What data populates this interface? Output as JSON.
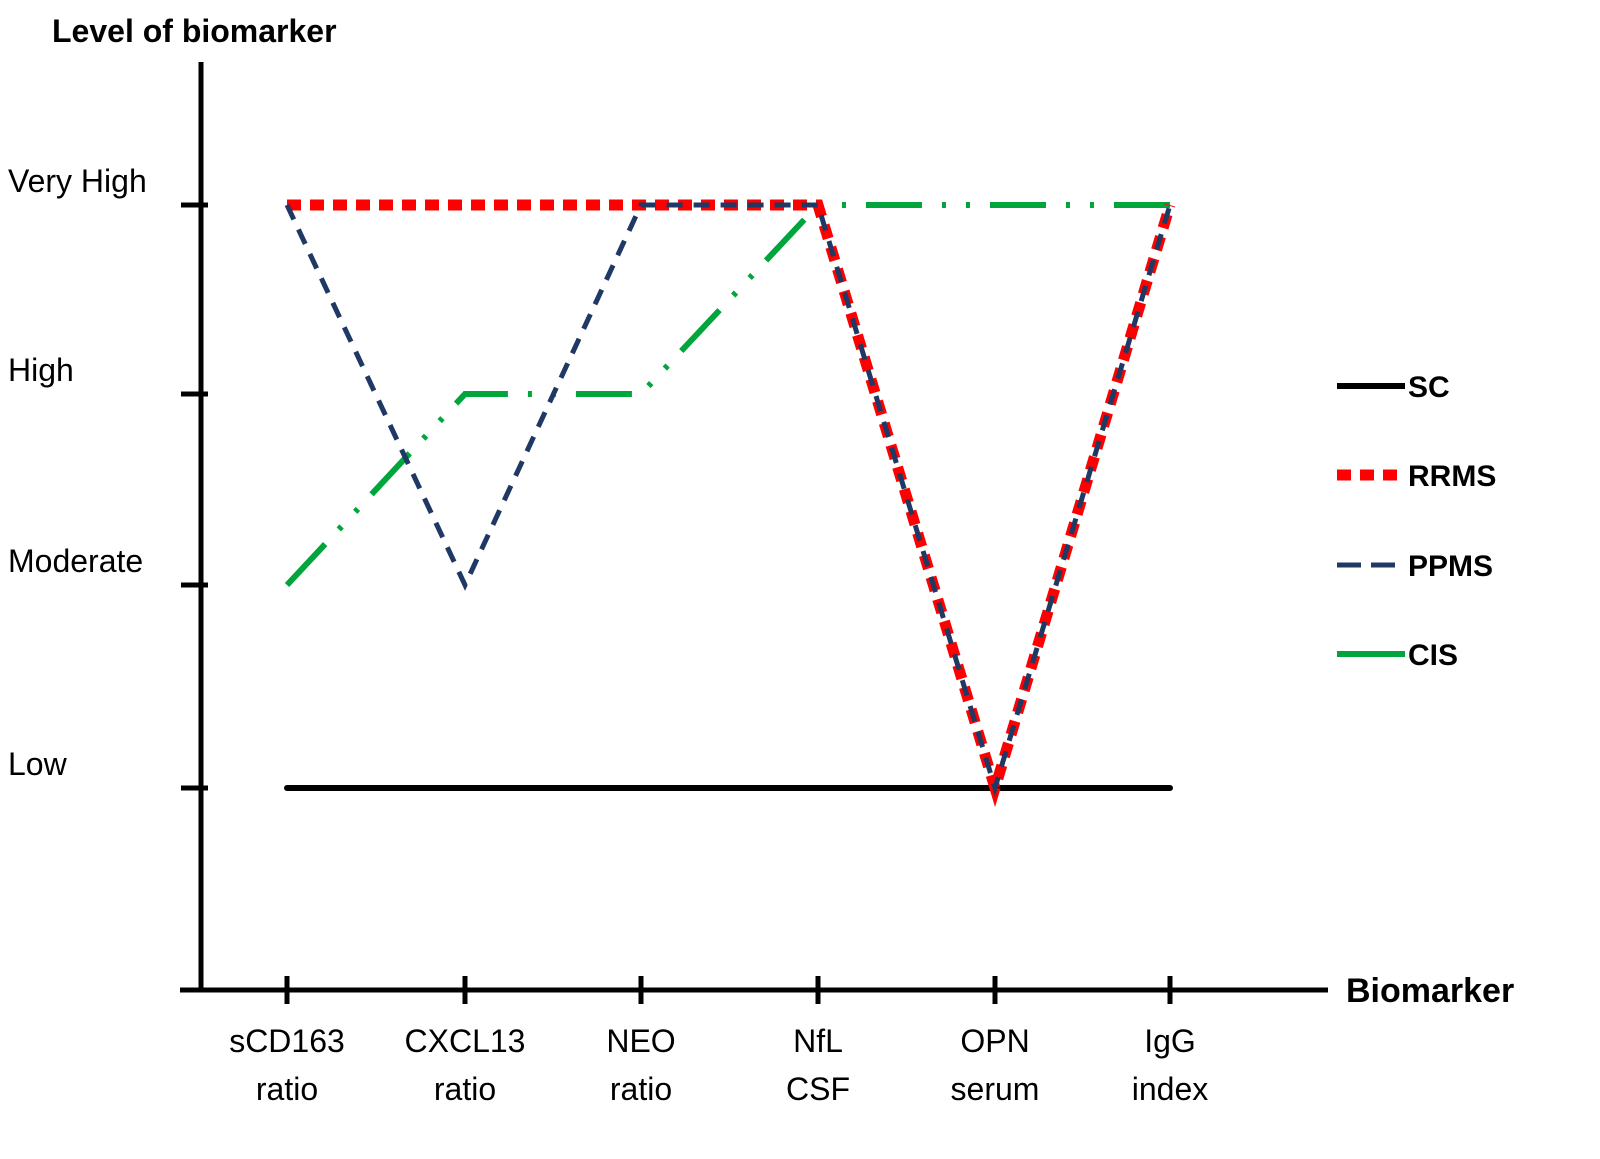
{
  "chart_data": {
    "type": "line",
    "title": "",
    "ylabel": "Level of  biomarker",
    "xlabel": "Biomarker",
    "y_levels": [
      "Low",
      "Moderate",
      "High",
      "Very High"
    ],
    "ylim": [
      0,
      4
    ],
    "categories": [
      [
        "sCD163",
        "ratio"
      ],
      [
        "CXCL13",
        "ratio"
      ],
      [
        "NEO",
        "ratio"
      ],
      [
        "NfL",
        "CSF"
      ],
      [
        "OPN",
        "serum"
      ],
      [
        "IgG",
        "index"
      ]
    ],
    "series": [
      {
        "name": "SC",
        "color": "#000000",
        "style": "solid",
        "values": [
          1,
          1,
          1,
          1,
          1,
          1
        ]
      },
      {
        "name": "RRMS",
        "color": "#ff0000",
        "style": "dotted-thick",
        "values": [
          4,
          4,
          4,
          4,
          1,
          4
        ]
      },
      {
        "name": "PPMS",
        "color": "#1f3864",
        "style": "dashed",
        "values": [
          4,
          2,
          4,
          4,
          1,
          4
        ]
      },
      {
        "name": "CIS",
        "color": "#00a63c",
        "style": "dash-dot-dot",
        "values": [
          2,
          3,
          3,
          4,
          4,
          4
        ]
      }
    ],
    "legend_position": "right",
    "grid": false
  }
}
